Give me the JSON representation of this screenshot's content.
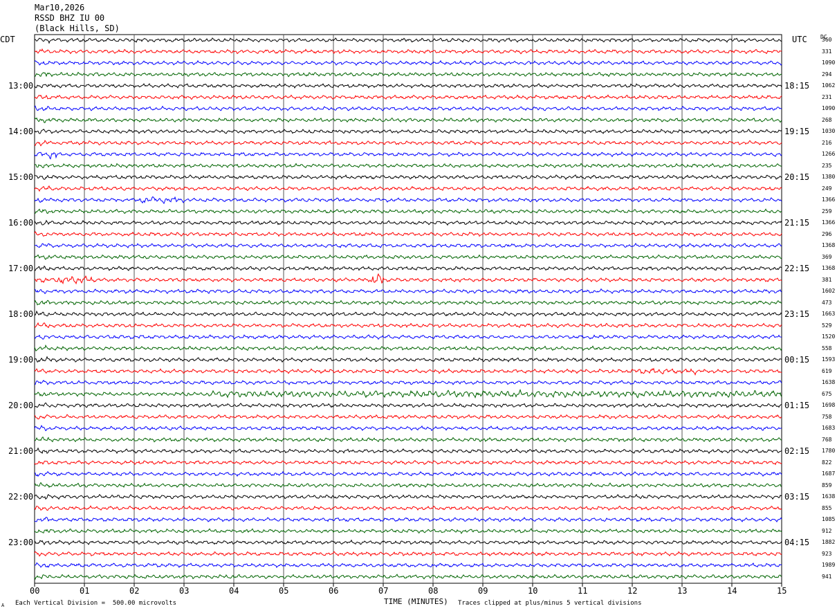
{
  "header": {
    "date": "Mar10,2026",
    "station": "RSSD BHZ IU 00",
    "location": "(Black Hills, SD)"
  },
  "left_tz": "CDT",
  "right_tz": "UTC",
  "dc_label": "DC",
  "footer": {
    "scale_note": "Each Vertical Division =  500.00 microvolts",
    "clip_note": "Traces clipped at plus/minus 5 vertical divisions",
    "corner_mark": "A"
  },
  "colors": {
    "black": "#000000",
    "red": "#ff0000",
    "blue": "#0000ff",
    "green": "#006400",
    "grid": "#000000"
  },
  "chart_data": {
    "type": "line",
    "xlabel": "TIME (MINUTES)",
    "xlim": [
      0,
      15
    ],
    "x_ticks": [
      "00",
      "01",
      "02",
      "03",
      "04",
      "05",
      "06",
      "07",
      "08",
      "09",
      "10",
      "11",
      "12",
      "13",
      "14",
      "15"
    ],
    "trace_color_cycle": [
      "black",
      "red",
      "blue",
      "green"
    ],
    "left_hour_labels": [
      {
        "trace_index": 4,
        "text": "13:00"
      },
      {
        "trace_index": 8,
        "text": "14:00"
      },
      {
        "trace_index": 12,
        "text": "15:00"
      },
      {
        "trace_index": 16,
        "text": "16:00"
      },
      {
        "trace_index": 20,
        "text": "17:00"
      },
      {
        "trace_index": 24,
        "text": "18:00"
      },
      {
        "trace_index": 28,
        "text": "19:00"
      },
      {
        "trace_index": 32,
        "text": "20:00"
      },
      {
        "trace_index": 36,
        "text": "21:00"
      },
      {
        "trace_index": 40,
        "text": "22:00"
      },
      {
        "trace_index": 44,
        "text": "23:00"
      }
    ],
    "right_hour_labels": [
      {
        "trace_index": 4,
        "text": "18:15"
      },
      {
        "trace_index": 8,
        "text": "19:15"
      },
      {
        "trace_index": 12,
        "text": "20:15"
      },
      {
        "trace_index": 16,
        "text": "21:15"
      },
      {
        "trace_index": 20,
        "text": "22:15"
      },
      {
        "trace_index": 24,
        "text": "23:15"
      },
      {
        "trace_index": 28,
        "text": "00:15"
      },
      {
        "trace_index": 32,
        "text": "01:15"
      },
      {
        "trace_index": 36,
        "text": "02:15"
      },
      {
        "trace_index": 40,
        "text": "03:15"
      },
      {
        "trace_index": 44,
        "text": "04:15"
      }
    ],
    "dc_values": [
      "360",
      "331",
      "1090",
      "294",
      "1062",
      "231",
      "1090",
      "268",
      "1030",
      "216",
      "1266",
      "235",
      "1380",
      "249",
      "1366",
      "259",
      "1366",
      "296",
      "1368",
      "369",
      "1368",
      "381",
      "1602",
      "473",
      "1663",
      "529",
      "1520",
      "558",
      "1593",
      "619",
      "1638",
      "675",
      "1698",
      "758",
      "1683",
      "768",
      "1780",
      "822",
      "1687",
      "859",
      "1638",
      "855",
      "1085",
      "912",
      "1882",
      "923",
      "1989",
      "941"
    ],
    "events": [
      {
        "trace_index": 21,
        "minute_range": [
          0.4,
          1.2
        ],
        "amplitude": 2.0
      },
      {
        "trace_index": 21,
        "minute_range": [
          6.75,
          7.0
        ],
        "amplitude": 3.5
      },
      {
        "trace_index": 14,
        "minute_range": [
          2.1,
          3.0
        ],
        "amplitude": 1.7
      },
      {
        "trace_index": 10,
        "minute_range": [
          0.3,
          0.45
        ],
        "amplitude": 2.5
      },
      {
        "trace_index": 31,
        "minute_range": [
          3.5,
          15.0
        ],
        "amplitude": 1.8
      },
      {
        "trace_index": 29,
        "minute_range": [
          12.0,
          13.3
        ],
        "amplitude": 1.5
      }
    ]
  }
}
